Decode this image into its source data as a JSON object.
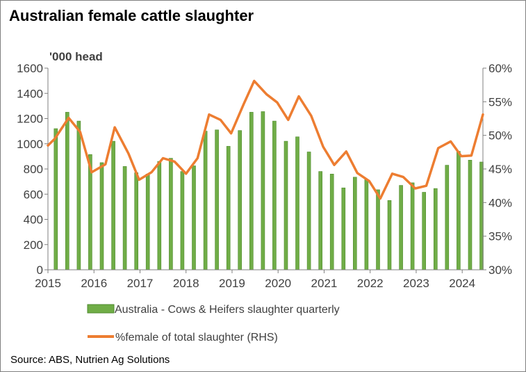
{
  "chart_data": {
    "type": "bar+line",
    "title": "Australian female cattle slaughter",
    "y_unit_label": "'000 head",
    "source": "Source: ABS, Nutrien Ag Solutions",
    "x_ticks": [
      "2015",
      "2016",
      "2017",
      "2018",
      "2019",
      "2020",
      "2021",
      "2022",
      "2023",
      "2024"
    ],
    "y_left": {
      "min": 0,
      "max": 1600,
      "step": 200,
      "ticks": [
        "0",
        "200",
        "400",
        "600",
        "800",
        "1000",
        "1200",
        "1400",
        "1600"
      ]
    },
    "y_right": {
      "min": 30,
      "max": 60,
      "step": 5,
      "ticks": [
        "30%",
        "35%",
        "40%",
        "45%",
        "50%",
        "55%",
        "60%"
      ]
    },
    "x_range": [
      2015.0,
      2024.45
    ],
    "quarters": [
      2015.17,
      2015.42,
      2015.67,
      2015.92,
      2016.17,
      2016.42,
      2016.67,
      2016.92,
      2017.17,
      2017.42,
      2017.67,
      2017.92,
      2018.17,
      2018.42,
      2018.67,
      2018.92,
      2019.17,
      2019.42,
      2019.67,
      2019.92,
      2020.17,
      2020.42,
      2020.67,
      2020.92,
      2021.17,
      2021.42,
      2021.67,
      2021.92,
      2022.17,
      2022.42,
      2022.67,
      2022.92,
      2023.17,
      2023.42,
      2023.67,
      2023.92,
      2024.17,
      2024.42
    ],
    "series": [
      {
        "name": "Australia - Cows & Heifers slaughter quarterly",
        "kind": "bar",
        "color": "#70ad47",
        "values": [
          1120,
          1250,
          1180,
          915,
          850,
          1020,
          820,
          770,
          760,
          860,
          885,
          780,
          825,
          1100,
          1110,
          980,
          1105,
          1250,
          1255,
          1180,
          1020,
          1055,
          935,
          780,
          760,
          650,
          735,
          715,
          635,
          550,
          670,
          690,
          615,
          645,
          830,
          940,
          870,
          855
        ]
      },
      {
        "name": "%female of total slaughter (RHS)",
        "kind": "line",
        "color": "#ed7d31",
        "x": [
          2015.0,
          2015.15,
          2015.45,
          2015.7,
          2015.95,
          2016.25,
          2016.45,
          2016.75,
          2016.98,
          2017.25,
          2017.5,
          2017.75,
          2018.0,
          2018.25,
          2018.5,
          2018.75,
          2018.98,
          2019.25,
          2019.48,
          2019.75,
          2019.98,
          2020.22,
          2020.45,
          2020.72,
          2020.98,
          2021.22,
          2021.48,
          2021.72,
          2021.98,
          2022.22,
          2022.48,
          2022.72,
          2022.98,
          2023.22,
          2023.48,
          2023.75,
          2023.98,
          2024.2,
          2024.45
        ],
        "values": [
          48.5,
          49.5,
          52.6,
          50.5,
          44.5,
          45.7,
          51.2,
          47.3,
          43.4,
          44.5,
          46.6,
          46.1,
          44.3,
          46.6,
          53.1,
          52.3,
          50.3,
          54.6,
          58.1,
          56.1,
          54.9,
          52.3,
          55.8,
          52.9,
          48.3,
          45.6,
          47.6,
          44.4,
          43.2,
          40.6,
          44.3,
          43.8,
          42.1,
          42.5,
          48.1,
          49.1,
          46.9,
          47.0,
          53.1
        ]
      }
    ],
    "legend": {
      "placement": "bottom"
    },
    "grid": false
  }
}
